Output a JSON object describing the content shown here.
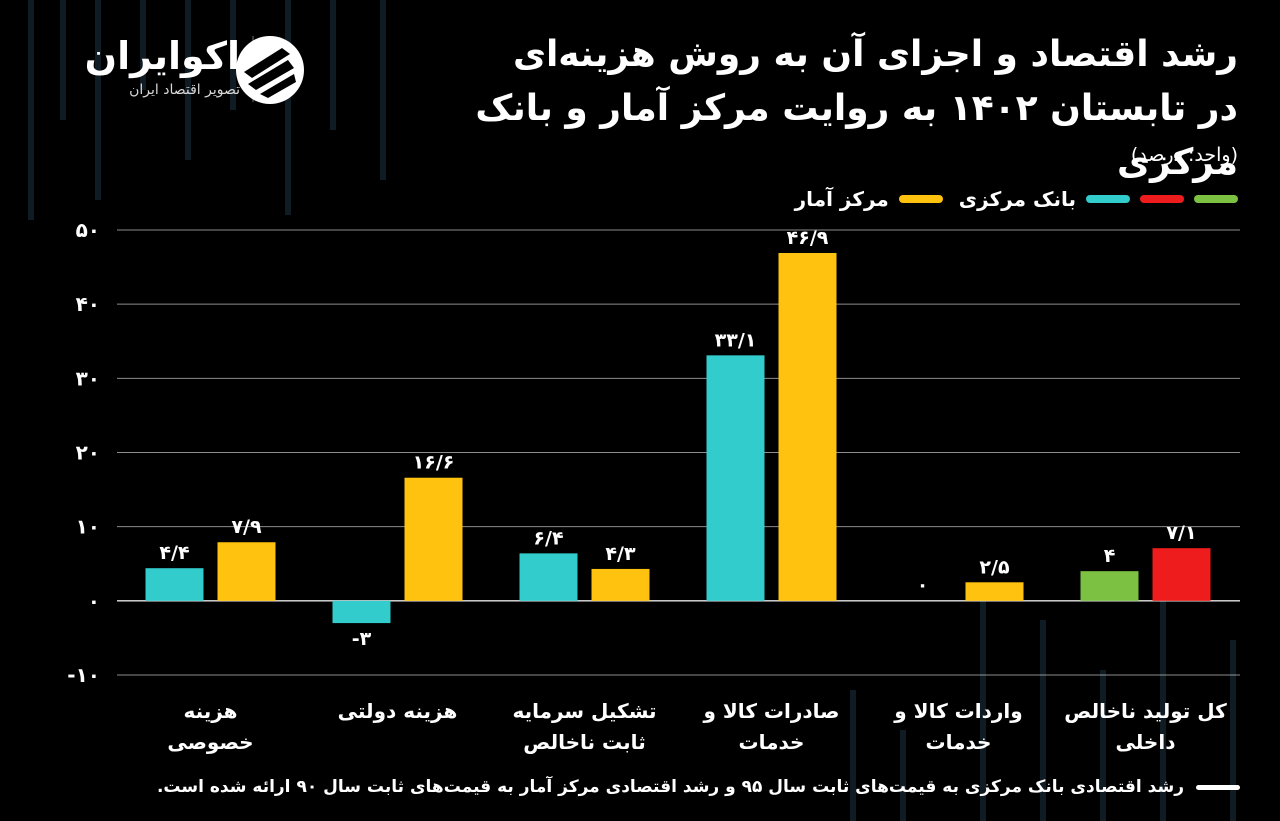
{
  "brand": {
    "name": "اکوایران",
    "tagline": "تصویر اقتصاد ایران"
  },
  "header": {
    "title_line1": "رشد اقتصاد و اجزای آن به روش هزینه‌ای",
    "title_line2": "در تابستان ۱۴۰۲ به روایت مرکز آمار و بانک مرکزی",
    "unit": "(واحد: درصد)"
  },
  "legend": {
    "items": [
      {
        "color": "#7cc142",
        "label": ""
      },
      {
        "color": "#ee1c1c",
        "label": ""
      },
      {
        "color": "#33cccc",
        "label": "بانک مرکزی"
      },
      {
        "color": "#ffc20e",
        "label": "مرکز آمار"
      }
    ]
  },
  "footnote": "رشد اقتصادی بانک مرکزی به قیمت‌های ثابت سال ۹۵ و رشد اقتصادی مرکز آمار به قیمت‌های ثابت سال ۹۰ ارائه شده است.",
  "colors": {
    "central_bank": "#33cccc",
    "statistics_center": "#ffc20e",
    "gdp_central_bank": "#7cc142",
    "gdp_statistics_center": "#ee1c1c",
    "gridline": "#ffffff"
  },
  "chart_data": {
    "type": "bar",
    "ylim": [
      -10,
      50
    ],
    "y_ticks": [
      -10,
      0,
      10,
      20,
      30,
      40,
      50
    ],
    "y_tick_labels": [
      "-۱۰",
      "۰",
      "۱۰",
      "۲۰",
      "۳۰",
      "۴۰",
      "۵۰"
    ],
    "grid": "horizontal",
    "categories": [
      {
        "label_lines": [
          "هزینه",
          "خصوصی"
        ]
      },
      {
        "label_lines": [
          "هزینه دولتی"
        ]
      },
      {
        "label_lines": [
          "تشکیل سرمایه",
          "ثابت ناخالص"
        ]
      },
      {
        "label_lines": [
          "صادرات کالا و",
          "خدمات"
        ]
      },
      {
        "label_lines": [
          "واردات کالا و",
          "خدمات"
        ]
      },
      {
        "label_lines": [
          "کل تولید ناخالص",
          "داخلی"
        ]
      }
    ],
    "series": [
      {
        "name": "بانک مرکزی",
        "values": [
          4.4,
          -3,
          6.4,
          33.1,
          0,
          4
        ],
        "labels": [
          "۴/۴",
          "-۳",
          "۶/۴",
          "۳۳/۱",
          "۰",
          "۴"
        ],
        "colors": [
          "#33cccc",
          "#33cccc",
          "#33cccc",
          "#33cccc",
          "#33cccc",
          "#7cc142"
        ]
      },
      {
        "name": "مرکز آمار",
        "values": [
          7.9,
          16.6,
          4.3,
          46.9,
          2.5,
          7.1
        ],
        "labels": [
          "۷/۹",
          "۱۶/۶",
          "۴/۳",
          "۴۶/۹",
          "۲/۵",
          "۷/۱"
        ],
        "colors": [
          "#ffc20e",
          "#ffc20e",
          "#ffc20e",
          "#ffc20e",
          "#ffc20e",
          "#ee1c1c"
        ]
      }
    ]
  }
}
